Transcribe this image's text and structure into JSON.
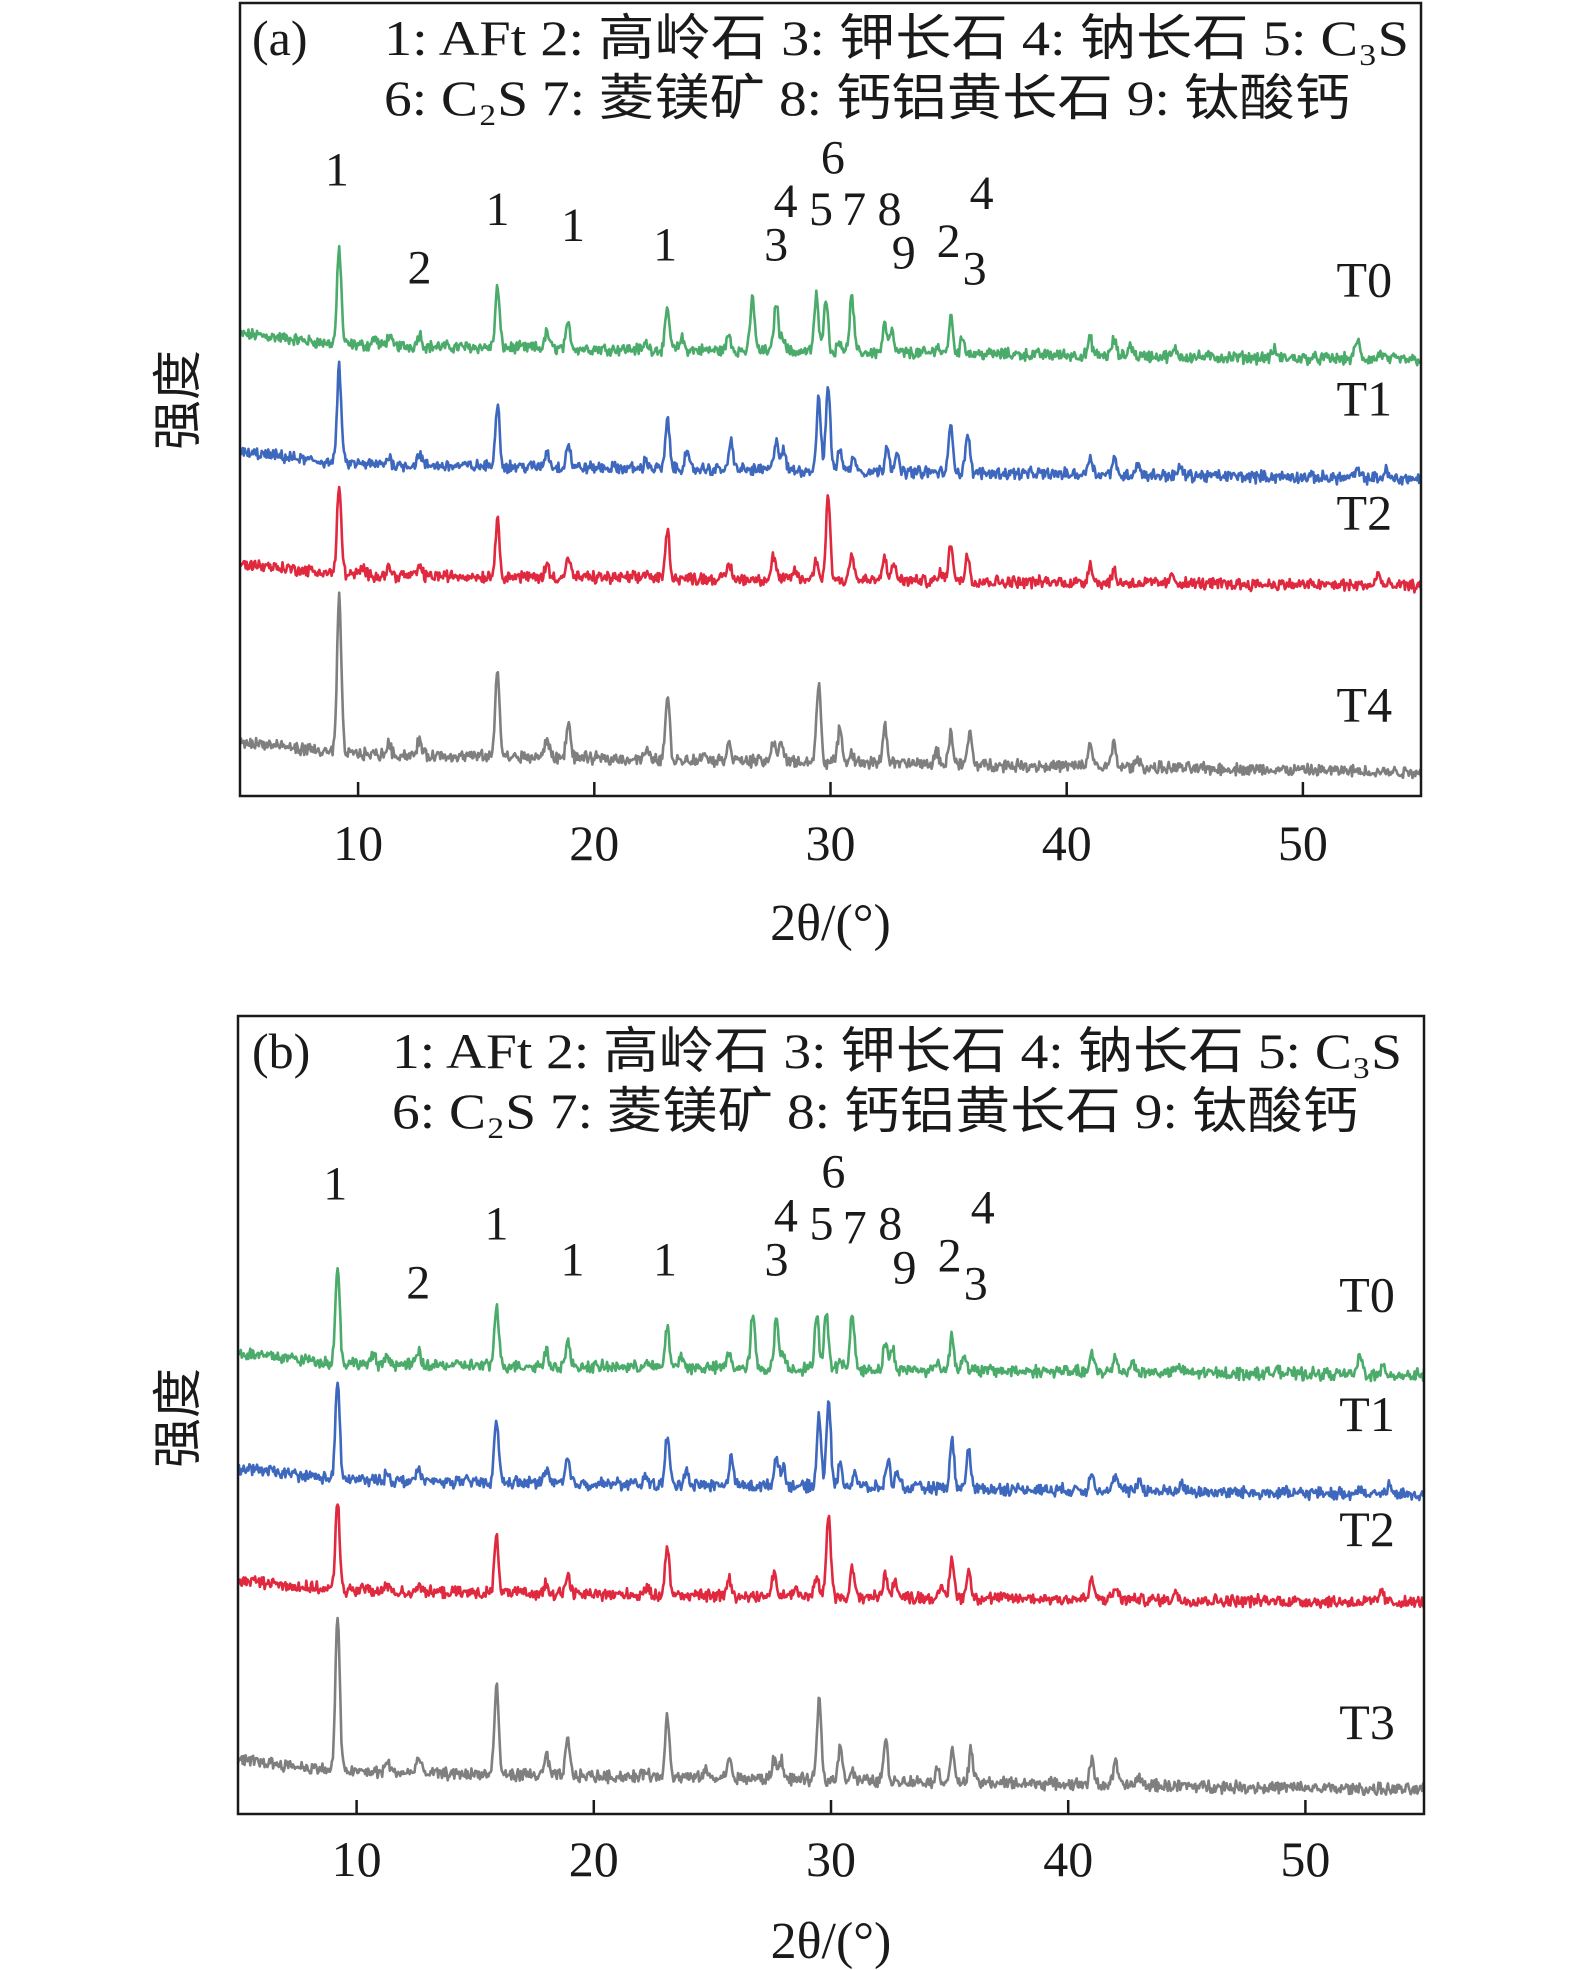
{
  "colors": {
    "T0": "#4aab6a",
    "T1": "#3d68bd",
    "T2": "#e0283e",
    "T3": "#7f7f7f",
    "T4": "#7f7f7f"
  },
  "chart_data": [
    {
      "type": "line",
      "panel_label": "(a)",
      "legend_lines": [
        "1: AFt 2: 高岭石 3: 钾长石 4: 钠长石  5: C₃S",
        "6: C₂S 7: 菱镁矿 8: 钙铝黄长石 9: 钛酸钙"
      ],
      "xlabel": "2θ/(°)",
      "ylabel": "强度",
      "xlim": [
        5,
        55
      ],
      "ylim": [
        0,
        100
      ],
      "xticks": [
        10,
        20,
        30,
        40,
        50
      ],
      "grid": false,
      "series": [
        {
          "name": "T0",
          "label_pos": [
            52.6,
            63
          ],
          "baseline": [
            57,
            55
          ],
          "peaks": [
            [
              9.2,
              12
            ],
            [
              10.7,
              1
            ],
            [
              11.3,
              1.2
            ],
            [
              12.6,
              1.6
            ],
            [
              15.9,
              7.5
            ],
            [
              18.0,
              2
            ],
            [
              18.9,
              3
            ],
            [
              22.2,
              0.8
            ],
            [
              23.1,
              5
            ],
            [
              23.7,
              1.5
            ],
            [
              25.7,
              2
            ],
            [
              26.7,
              6.7
            ],
            [
              27.7,
              6.3
            ],
            [
              28.0,
              2
            ],
            [
              29.4,
              7
            ],
            [
              29.8,
              7
            ],
            [
              30.4,
              1.5
            ],
            [
              30.9,
              7
            ],
            [
              32.3,
              3.5
            ],
            [
              32.6,
              2.5
            ],
            [
              34.5,
              1
            ],
            [
              35.1,
              4.5
            ],
            [
              35.6,
              2
            ],
            [
              41.0,
              2
            ],
            [
              42.0,
              2
            ],
            [
              42.7,
              1.5
            ],
            [
              44.6,
              0.8
            ],
            [
              48.8,
              1
            ],
            [
              52.3,
              2.5
            ],
            [
              53.3,
              0.8
            ]
          ]
        },
        {
          "name": "T1",
          "label_pos": [
            52.6,
            48
          ],
          "baseline": [
            42,
            40
          ],
          "peaks": [
            [
              9.2,
              12
            ],
            [
              11.3,
              1
            ],
            [
              12.6,
              1.5
            ],
            [
              15.9,
              8
            ],
            [
              18.0,
              2
            ],
            [
              18.9,
              3
            ],
            [
              22.2,
              1
            ],
            [
              23.1,
              6
            ],
            [
              23.9,
              2
            ],
            [
              25.8,
              3.5
            ],
            [
              27.7,
              4
            ],
            [
              28.0,
              2.5
            ],
            [
              29.5,
              9
            ],
            [
              29.9,
              11
            ],
            [
              30.4,
              3
            ],
            [
              31.0,
              2
            ],
            [
              32.4,
              3.5
            ],
            [
              32.8,
              2
            ],
            [
              35.1,
              6
            ],
            [
              35.8,
              5
            ],
            [
              41.0,
              2.5
            ],
            [
              42.0,
              2
            ],
            [
              43.0,
              1.5
            ],
            [
              44.8,
              1
            ],
            [
              52.3,
              1
            ],
            [
              53.5,
              1
            ]
          ]
        },
        {
          "name": "T2",
          "label_pos": [
            52.6,
            33.6
          ],
          "baseline": [
            28,
            26.5
          ],
          "peaks": [
            [
              9.2,
              11
            ],
            [
              10.2,
              0.8
            ],
            [
              11.3,
              1
            ],
            [
              12.6,
              1.2
            ],
            [
              15.9,
              7
            ],
            [
              18.0,
              1.5
            ],
            [
              18.9,
              2.5
            ],
            [
              22.2,
              0.8
            ],
            [
              23.1,
              6
            ],
            [
              25.7,
              2
            ],
            [
              27.6,
              3
            ],
            [
              28.5,
              1.2
            ],
            [
              29.4,
              2.5
            ],
            [
              29.9,
              10.5
            ],
            [
              30.9,
              3.5
            ],
            [
              32.3,
              3
            ],
            [
              32.7,
              2
            ],
            [
              34.7,
              1.2
            ],
            [
              35.1,
              5
            ],
            [
              35.8,
              3.5
            ],
            [
              41.0,
              2.5
            ],
            [
              42.0,
              1.5
            ],
            [
              44.5,
              1
            ],
            [
              53.2,
              1.5
            ]
          ]
        },
        {
          "name": "T4",
          "label_pos": [
            52.6,
            9.4
          ],
          "baseline": [
            5.5,
            3
          ],
          "peaks": [
            [
              9.2,
              19.5
            ],
            [
              11.3,
              1.5
            ],
            [
              12.6,
              2
            ],
            [
              15.9,
              11
            ],
            [
              18.0,
              2.5
            ],
            [
              18.9,
              4.5
            ],
            [
              22.2,
              1
            ],
            [
              23.1,
              8
            ],
            [
              24.7,
              1
            ],
            [
              25.7,
              2.5
            ],
            [
              27.6,
              2.5
            ],
            [
              27.9,
              2.5
            ],
            [
              29.5,
              10
            ],
            [
              30.4,
              4.5
            ],
            [
              30.9,
              1.2
            ],
            [
              32.3,
              5
            ],
            [
              34.5,
              1.5
            ],
            [
              35.1,
              4
            ],
            [
              35.9,
              4
            ],
            [
              41.0,
              3
            ],
            [
              42.0,
              3
            ],
            [
              43.0,
              1
            ]
          ]
        }
      ],
      "annotations": [
        {
          "text": "1",
          "x": 9.1,
          "y": 77
        },
        {
          "text": "2",
          "x": 12.6,
          "y": 64.6
        },
        {
          "text": "1",
          "x": 15.9,
          "y": 72
        },
        {
          "text": "1",
          "x": 19.1,
          "y": 70
        },
        {
          "text": "1",
          "x": 23.0,
          "y": 67.5
        },
        {
          "text": "3",
          "x": 27.7,
          "y": 67.5
        },
        {
          "text": "4",
          "x": 28.1,
          "y": 73
        },
        {
          "text": "5",
          "x": 29.6,
          "y": 72
        },
        {
          "text": "6",
          "x": 30.1,
          "y": 78.5
        },
        {
          "text": "7",
          "x": 31.0,
          "y": 72
        },
        {
          "text": "8",
          "x": 32.5,
          "y": 72
        },
        {
          "text": "9",
          "x": 33.1,
          "y": 66.5
        },
        {
          "text": "2",
          "x": 35.0,
          "y": 68
        },
        {
          "text": "3",
          "x": 36.1,
          "y": 64.5
        },
        {
          "text": "4",
          "x": 36.4,
          "y": 74
        }
      ]
    },
    {
      "type": "line",
      "panel_label": "(b)",
      "legend_lines": [
        "1: AFt 2: 高岭石 3: 钾长石 4: 钠长石 5: C₃S",
        "6: C₂S 7: 菱镁矿 8: 钙铝黄长石 9: 钛酸钙"
      ],
      "xlabel": "2θ/(°)",
      "ylabel": "强度",
      "xlim": [
        5,
        55
      ],
      "ylim": [
        0,
        100
      ],
      "xticks": [
        10,
        20,
        30,
        40,
        50
      ],
      "grid": false,
      "series": [
        {
          "name": "T0",
          "label_pos": [
            52.6,
            63
          ],
          "baseline": [
            56.5,
            55
          ],
          "peaks": [
            [
              9.2,
              12
            ],
            [
              10.7,
              1
            ],
            [
              11.3,
              1.2
            ],
            [
              12.6,
              1.6
            ],
            [
              15.9,
              7.5
            ],
            [
              18.0,
              2
            ],
            [
              18.9,
              3
            ],
            [
              22.2,
              0.8
            ],
            [
              23.1,
              5
            ],
            [
              23.7,
              1.5
            ],
            [
              25.7,
              2
            ],
            [
              26.7,
              6.7
            ],
            [
              27.7,
              6.3
            ],
            [
              28.0,
              2
            ],
            [
              29.4,
              7
            ],
            [
              29.8,
              7
            ],
            [
              30.4,
              1.5
            ],
            [
              30.9,
              7
            ],
            [
              32.3,
              3.5
            ],
            [
              32.6,
              2.5
            ],
            [
              34.5,
              1
            ],
            [
              35.1,
              4.5
            ],
            [
              35.6,
              2
            ],
            [
              41.0,
              2
            ],
            [
              42.0,
              2
            ],
            [
              42.7,
              1.5
            ],
            [
              44.6,
              0.8
            ],
            [
              48.8,
              1
            ],
            [
              52.3,
              2.5
            ],
            [
              53.3,
              0.8
            ]
          ]
        },
        {
          "name": "T1",
          "label_pos": [
            52.6,
            48
          ],
          "baseline": [
            42,
            40
          ],
          "peaks": [
            [
              9.2,
              12
            ],
            [
              11.3,
              1
            ],
            [
              12.6,
              1.5
            ],
            [
              15.9,
              8
            ],
            [
              18.0,
              2
            ],
            [
              18.9,
              3
            ],
            [
              22.2,
              1
            ],
            [
              23.1,
              6
            ],
            [
              23.9,
              2
            ],
            [
              25.8,
              3.5
            ],
            [
              27.7,
              4
            ],
            [
              28.0,
              2.5
            ],
            [
              29.5,
              9
            ],
            [
              29.9,
              11
            ],
            [
              30.4,
              3
            ],
            [
              31.0,
              2
            ],
            [
              32.4,
              3.5
            ],
            [
              32.8,
              2
            ],
            [
              35.1,
              6
            ],
            [
              35.8,
              5
            ],
            [
              41.0,
              2.5
            ],
            [
              42.0,
              2
            ],
            [
              43.0,
              1.5
            ],
            [
              44.8,
              1
            ],
            [
              52.3,
              1
            ],
            [
              53.5,
              1
            ]
          ]
        },
        {
          "name": "T2",
          "label_pos": [
            52.6,
            33.6
          ],
          "baseline": [
            28,
            26.5
          ],
          "peaks": [
            [
              9.2,
              11
            ],
            [
              10.2,
              0.8
            ],
            [
              11.3,
              1
            ],
            [
              12.6,
              1.2
            ],
            [
              15.9,
              7
            ],
            [
              18.0,
              1.5
            ],
            [
              18.9,
              2.5
            ],
            [
              22.2,
              0.8
            ],
            [
              23.1,
              6
            ],
            [
              25.7,
              2
            ],
            [
              27.6,
              3
            ],
            [
              28.5,
              1.2
            ],
            [
              29.4,
              2.5
            ],
            [
              29.9,
              10.5
            ],
            [
              30.9,
              3.5
            ],
            [
              32.3,
              3
            ],
            [
              32.7,
              2
            ],
            [
              34.7,
              1.2
            ],
            [
              35.1,
              5
            ],
            [
              35.8,
              3.5
            ],
            [
              41.0,
              2.5
            ],
            [
              42.0,
              1.5
            ],
            [
              44.5,
              1
            ],
            [
              53.2,
              1.5
            ]
          ]
        },
        {
          "name": "T3",
          "label_pos": [
            52.6,
            9.4
          ],
          "baseline": [
            5.5,
            3
          ],
          "peaks": [
            [
              9.2,
              19.5
            ],
            [
              11.3,
              1.5
            ],
            [
              12.6,
              2
            ],
            [
              15.9,
              11
            ],
            [
              18.0,
              2.5
            ],
            [
              18.9,
              4.5
            ],
            [
              22.2,
              1
            ],
            [
              23.1,
              8
            ],
            [
              24.7,
              1
            ],
            [
              25.7,
              2.5
            ],
            [
              27.6,
              2.5
            ],
            [
              27.9,
              2.5
            ],
            [
              29.5,
              10
            ],
            [
              30.4,
              4.5
            ],
            [
              30.9,
              1.2
            ],
            [
              32.3,
              5
            ],
            [
              34.5,
              1.5
            ],
            [
              35.1,
              4
            ],
            [
              35.9,
              4
            ],
            [
              41.0,
              3
            ],
            [
              42.0,
              3
            ],
            [
              43.0,
              1
            ]
          ]
        }
      ],
      "annotations": [
        {
          "text": "1",
          "x": 9.1,
          "y": 77
        },
        {
          "text": "2",
          "x": 12.6,
          "y": 64.6
        },
        {
          "text": "1",
          "x": 15.9,
          "y": 72
        },
        {
          "text": "1",
          "x": 19.1,
          "y": 67.5
        },
        {
          "text": "1",
          "x": 23.0,
          "y": 67.5
        },
        {
          "text": "3",
          "x": 27.7,
          "y": 67.5
        },
        {
          "text": "4",
          "x": 28.1,
          "y": 73
        },
        {
          "text": "5",
          "x": 29.6,
          "y": 72
        },
        {
          "text": "6",
          "x": 30.1,
          "y": 78.5
        },
        {
          "text": "7",
          "x": 31.0,
          "y": 71.5
        },
        {
          "text": "8",
          "x": 32.5,
          "y": 72
        },
        {
          "text": "9",
          "x": 33.1,
          "y": 66.5
        },
        {
          "text": "2",
          "x": 35.0,
          "y": 68
        },
        {
          "text": "3",
          "x": 36.1,
          "y": 64.5
        },
        {
          "text": "4",
          "x": 36.4,
          "y": 74
        }
      ]
    }
  ]
}
